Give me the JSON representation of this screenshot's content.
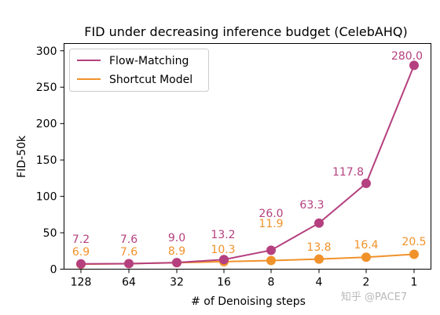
{
  "chart_data": {
    "type": "line",
    "title": "FID under decreasing inference budget (CelebAHQ)",
    "xlabel": "# of Denoising steps",
    "ylabel": "FID-50k",
    "categories": [
      "128",
      "64",
      "32",
      "16",
      "8",
      "4",
      "2",
      "1"
    ],
    "ylim": [
      0,
      310
    ],
    "yticks": [
      0,
      50,
      100,
      150,
      200,
      250,
      300
    ],
    "grid": false,
    "legend_position": "top-left",
    "series": [
      {
        "name": "Flow-Matching",
        "color": "#b5407f",
        "values": [
          7.2,
          7.6,
          9.0,
          13.2,
          26.0,
          63.3,
          117.8,
          280.0
        ],
        "labels": [
          "7.2",
          "7.6",
          "9.0",
          "13.2",
          "26.0",
          "63.3",
          "117.8",
          "280.0"
        ]
      },
      {
        "name": "Shortcut Model",
        "color": "#f0922b",
        "values": [
          6.9,
          7.6,
          8.9,
          10.3,
          11.9,
          13.8,
          16.4,
          20.5
        ],
        "labels": [
          "6.9",
          "7.6",
          "8.9",
          "10.3",
          "11.9",
          "13.8",
          "16.4",
          "20.5"
        ]
      }
    ]
  },
  "watermark": "知乎 @PACE7"
}
